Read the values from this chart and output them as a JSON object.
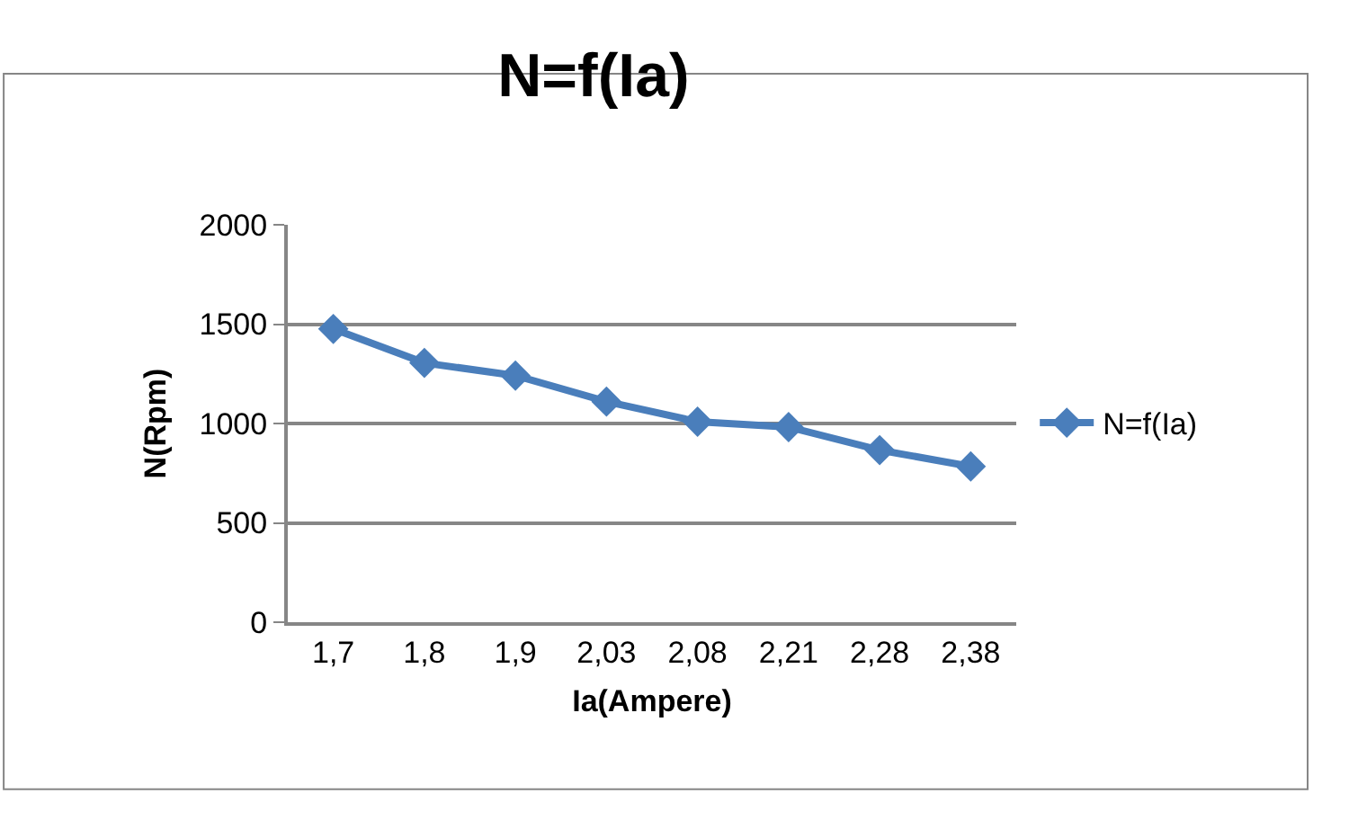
{
  "chart_data": {
    "type": "line",
    "title": "N=f(Ia)",
    "xlabel": "Ia(Ampere)",
    "ylabel": "N(Rpm)",
    "categories": [
      "1,7",
      "1,8",
      "1,9",
      "2,03",
      "2,08",
      "2,21",
      "2,28",
      "2,38"
    ],
    "series": [
      {
        "name": "N=f(Ia)",
        "color": "#4a7ebb",
        "values": [
          1476,
          1305,
          1241,
          1110,
          1009,
          982,
          866,
          784
        ]
      }
    ],
    "ylim": [
      0,
      2000
    ],
    "yticks": [
      0,
      500,
      1000,
      1500,
      2000
    ],
    "grid": "y",
    "legend": "right",
    "marker": "diamond",
    "line_style": "solid"
  }
}
